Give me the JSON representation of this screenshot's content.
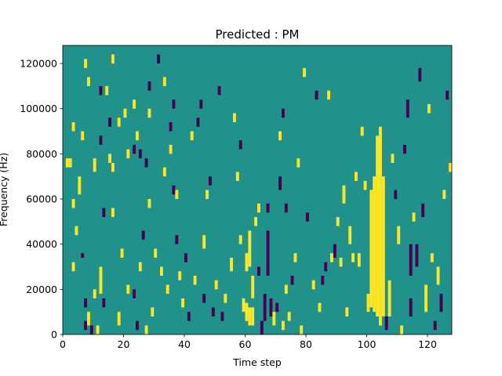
{
  "chart_data": {
    "type": "heatmap",
    "title": "Predicted : PM",
    "xlabel": "Time step",
    "ylabel": "Frequency (Hz)",
    "xlim": [
      0,
      128
    ],
    "ylim": [
      0,
      128000
    ],
    "xticks": [
      "0",
      "20",
      "40",
      "60",
      "80",
      "100",
      "120"
    ],
    "yticks": [
      "0",
      "20000",
      "40000",
      "60000",
      "80000",
      "100000",
      "120000"
    ],
    "grid": false,
    "legend": "none",
    "n_time_steps": 128,
    "n_freq_bins": 64,
    "bin_width_hz": 2000,
    "colors": {
      "background": "#21918c",
      "high": "#fde725",
      "low": "#440154"
    },
    "background_value": "mid",
    "segments": [
      {
        "t": 1,
        "f0": 74000,
        "f1": 78000,
        "v": "high"
      },
      {
        "t": 2,
        "f0": 74000,
        "f1": 78000,
        "v": "high"
      },
      {
        "t": 3,
        "f0": 90000,
        "f1": 94000,
        "v": "high"
      },
      {
        "t": 3,
        "f0": 56000,
        "f1": 60000,
        "v": "high"
      },
      {
        "t": 3,
        "f0": 28000,
        "f1": 32000,
        "v": "high"
      },
      {
        "t": 4,
        "f0": 44000,
        "f1": 48000,
        "v": "high"
      },
      {
        "t": 5,
        "f0": 62000,
        "f1": 70000,
        "v": "high"
      },
      {
        "t": 6,
        "f0": 86000,
        "f1": 90000,
        "v": "high"
      },
      {
        "t": 6,
        "f0": 34000,
        "f1": 36000,
        "v": "low"
      },
      {
        "t": 7,
        "f0": 118000,
        "f1": 122000,
        "v": "high"
      },
      {
        "t": 7,
        "f0": 2000,
        "f1": 6000,
        "v": "low"
      },
      {
        "t": 7,
        "f0": 12000,
        "f1": 16000,
        "v": "low"
      },
      {
        "t": 8,
        "f0": 110000,
        "f1": 114000,
        "v": "high"
      },
      {
        "t": 8,
        "f0": 4000,
        "f1": 10000,
        "v": "high"
      },
      {
        "t": 9,
        "f0": 0,
        "f1": 4000,
        "v": "low"
      },
      {
        "t": 10,
        "f0": 72000,
        "f1": 78000,
        "v": "high"
      },
      {
        "t": 10,
        "f0": 16000,
        "f1": 20000,
        "v": "high"
      },
      {
        "t": 11,
        "f0": 0,
        "f1": 4000,
        "v": "high"
      },
      {
        "t": 12,
        "f0": 106000,
        "f1": 110000,
        "v": "low"
      },
      {
        "t": 12,
        "f0": 84000,
        "f1": 88000,
        "v": "low"
      },
      {
        "t": 12,
        "f0": 18000,
        "f1": 30000,
        "v": "high"
      },
      {
        "t": 13,
        "f0": 52000,
        "f1": 56000,
        "v": "low"
      },
      {
        "t": 13,
        "f0": 12000,
        "f1": 16000,
        "v": "low"
      },
      {
        "t": 14,
        "f0": 106000,
        "f1": 110000,
        "v": "high"
      },
      {
        "t": 15,
        "f0": 92000,
        "f1": 96000,
        "v": "low"
      },
      {
        "t": 15,
        "f0": 76000,
        "f1": 80000,
        "v": "high"
      },
      {
        "t": 16,
        "f0": 120000,
        "f1": 124000,
        "v": "high"
      },
      {
        "t": 16,
        "f0": 72000,
        "f1": 76000,
        "v": "high"
      },
      {
        "t": 16,
        "f0": 52000,
        "f1": 56000,
        "v": "high"
      },
      {
        "t": 18,
        "f0": 92000,
        "f1": 96000,
        "v": "high"
      },
      {
        "t": 18,
        "f0": 4000,
        "f1": 10000,
        "v": "high"
      },
      {
        "t": 19,
        "f0": 34000,
        "f1": 38000,
        "v": "high"
      },
      {
        "t": 20,
        "f0": 96000,
        "f1": 100000,
        "v": "high"
      },
      {
        "t": 21,
        "f0": 78000,
        "f1": 82000,
        "v": "high"
      },
      {
        "t": 21,
        "f0": 18000,
        "f1": 22000,
        "v": "high"
      },
      {
        "t": 23,
        "f0": 100000,
        "f1": 104000,
        "v": "high"
      },
      {
        "t": 23,
        "f0": 80000,
        "f1": 84000,
        "v": "low"
      },
      {
        "t": 23,
        "f0": 16000,
        "f1": 20000,
        "v": "low"
      },
      {
        "t": 24,
        "f0": 86000,
        "f1": 90000,
        "v": "high"
      },
      {
        "t": 24,
        "f0": 2000,
        "f1": 6000,
        "v": "low"
      },
      {
        "t": 25,
        "f0": 78000,
        "f1": 82000,
        "v": "low"
      },
      {
        "t": 25,
        "f0": 28000,
        "f1": 32000,
        "v": "high"
      },
      {
        "t": 26,
        "f0": 42000,
        "f1": 46000,
        "v": "low"
      },
      {
        "t": 27,
        "f0": 74000,
        "f1": 78000,
        "v": "low"
      },
      {
        "t": 27,
        "f0": 0,
        "f1": 4000,
        "v": "high"
      },
      {
        "t": 28,
        "f0": 108000,
        "f1": 112000,
        "v": "low"
      },
      {
        "t": 28,
        "f0": 96000,
        "f1": 100000,
        "v": "high"
      },
      {
        "t": 28,
        "f0": 56000,
        "f1": 60000,
        "v": "high"
      },
      {
        "t": 29,
        "f0": 8000,
        "f1": 12000,
        "v": "high"
      },
      {
        "t": 30,
        "f0": 34000,
        "f1": 38000,
        "v": "high"
      },
      {
        "t": 31,
        "f0": 120000,
        "f1": 124000,
        "v": "low"
      },
      {
        "t": 32,
        "f0": 26000,
        "f1": 30000,
        "v": "high"
      },
      {
        "t": 33,
        "f0": 110000,
        "f1": 114000,
        "v": "high"
      },
      {
        "t": 33,
        "f0": 70000,
        "f1": 74000,
        "v": "high"
      },
      {
        "t": 34,
        "f0": 18000,
        "f1": 22000,
        "v": "high"
      },
      {
        "t": 35,
        "f0": 90000,
        "f1": 94000,
        "v": "low"
      },
      {
        "t": 35,
        "f0": 80000,
        "f1": 84000,
        "v": "high"
      },
      {
        "t": 36,
        "f0": 100000,
        "f1": 104000,
        "v": "low"
      },
      {
        "t": 36,
        "f0": 62000,
        "f1": 66000,
        "v": "low"
      },
      {
        "t": 37,
        "f0": 60000,
        "f1": 64000,
        "v": "high"
      },
      {
        "t": 37,
        "f0": 40000,
        "f1": 44000,
        "v": "low"
      },
      {
        "t": 38,
        "f0": 24000,
        "f1": 28000,
        "v": "high"
      },
      {
        "t": 39,
        "f0": 12000,
        "f1": 16000,
        "v": "high"
      },
      {
        "t": 40,
        "f0": 32000,
        "f1": 36000,
        "v": "low"
      },
      {
        "t": 41,
        "f0": 6000,
        "f1": 10000,
        "v": "low"
      },
      {
        "t": 42,
        "f0": 86000,
        "f1": 90000,
        "v": "high"
      },
      {
        "t": 43,
        "f0": 22000,
        "f1": 26000,
        "v": "high"
      },
      {
        "t": 44,
        "f0": 92000,
        "f1": 96000,
        "v": "low"
      },
      {
        "t": 45,
        "f0": 100000,
        "f1": 104000,
        "v": "low"
      },
      {
        "t": 46,
        "f0": 14000,
        "f1": 18000,
        "v": "low"
      },
      {
        "t": 46,
        "f0": 38000,
        "f1": 44000,
        "v": "high"
      },
      {
        "t": 47,
        "f0": 60000,
        "f1": 64000,
        "v": "high"
      },
      {
        "t": 48,
        "f0": 66000,
        "f1": 70000,
        "v": "low"
      },
      {
        "t": 49,
        "f0": 8000,
        "f1": 12000,
        "v": "low"
      },
      {
        "t": 50,
        "f0": 20000,
        "f1": 24000,
        "v": "high"
      },
      {
        "t": 51,
        "f0": 106000,
        "f1": 110000,
        "v": "low"
      },
      {
        "t": 52,
        "f0": 6000,
        "f1": 10000,
        "v": "low"
      },
      {
        "t": 53,
        "f0": 14000,
        "f1": 18000,
        "v": "high"
      },
      {
        "t": 55,
        "f0": 28000,
        "f1": 34000,
        "v": "high"
      },
      {
        "t": 56,
        "f0": 94000,
        "f1": 98000,
        "v": "high"
      },
      {
        "t": 57,
        "f0": 68000,
        "f1": 72000,
        "v": "high"
      },
      {
        "t": 58,
        "f0": 82000,
        "f1": 86000,
        "v": "low"
      },
      {
        "t": 58,
        "f0": 40000,
        "f1": 44000,
        "v": "high"
      },
      {
        "t": 59,
        "f0": 10000,
        "f1": 16000,
        "v": "high"
      },
      {
        "t": 60,
        "f0": 6000,
        "f1": 14000,
        "v": "high"
      },
      {
        "t": 60,
        "f0": 28000,
        "f1": 36000,
        "v": "high"
      },
      {
        "t": 61,
        "f0": 4000,
        "f1": 12000,
        "v": "high"
      },
      {
        "t": 61,
        "f0": 30000,
        "f1": 46000,
        "v": "high"
      },
      {
        "t": 62,
        "f0": 4000,
        "f1": 12000,
        "v": "high"
      },
      {
        "t": 62,
        "f0": 16000,
        "f1": 26000,
        "v": "high"
      },
      {
        "t": 63,
        "f0": 48000,
        "f1": 52000,
        "v": "high"
      },
      {
        "t": 64,
        "f0": 54000,
        "f1": 58000,
        "v": "high"
      },
      {
        "t": 64,
        "f0": 26000,
        "f1": 30000,
        "v": "low"
      },
      {
        "t": 65,
        "f0": 0,
        "f1": 6000,
        "v": "low"
      },
      {
        "t": 66,
        "f0": 6000,
        "f1": 18000,
        "v": "low"
      },
      {
        "t": 67,
        "f0": 54000,
        "f1": 58000,
        "v": "low"
      },
      {
        "t": 67,
        "f0": 26000,
        "f1": 46000,
        "v": "low"
      },
      {
        "t": 68,
        "f0": 8000,
        "f1": 16000,
        "v": "low"
      },
      {
        "t": 69,
        "f0": 4000,
        "f1": 10000,
        "v": "high"
      },
      {
        "t": 70,
        "f0": 10000,
        "f1": 14000,
        "v": "low"
      },
      {
        "t": 71,
        "f0": 86000,
        "f1": 90000,
        "v": "high"
      },
      {
        "t": 71,
        "f0": 64000,
        "f1": 70000,
        "v": "low"
      },
      {
        "t": 72,
        "f0": 96000,
        "f1": 100000,
        "v": "low"
      },
      {
        "t": 72,
        "f0": 2000,
        "f1": 6000,
        "v": "high"
      },
      {
        "t": 73,
        "f0": 54000,
        "f1": 58000,
        "v": "low"
      },
      {
        "t": 73,
        "f0": 18000,
        "f1": 22000,
        "v": "high"
      },
      {
        "t": 74,
        "f0": 6000,
        "f1": 10000,
        "v": "high"
      },
      {
        "t": 75,
        "f0": 22000,
        "f1": 26000,
        "v": "low"
      },
      {
        "t": 76,
        "f0": 32000,
        "f1": 36000,
        "v": "high"
      },
      {
        "t": 77,
        "f0": 74000,
        "f1": 78000,
        "v": "high"
      },
      {
        "t": 78,
        "f0": 0,
        "f1": 4000,
        "v": "high"
      },
      {
        "t": 79,
        "f0": 114000,
        "f1": 118000,
        "v": "high"
      },
      {
        "t": 80,
        "f0": 50000,
        "f1": 54000,
        "v": "low"
      },
      {
        "t": 82,
        "f0": 20000,
        "f1": 24000,
        "v": "high"
      },
      {
        "t": 83,
        "f0": 104000,
        "f1": 108000,
        "v": "low"
      },
      {
        "t": 84,
        "f0": 10000,
        "f1": 14000,
        "v": "high"
      },
      {
        "t": 85,
        "f0": 22000,
        "f1": 26000,
        "v": "low"
      },
      {
        "t": 86,
        "f0": 28000,
        "f1": 32000,
        "v": "low"
      },
      {
        "t": 87,
        "f0": 104000,
        "f1": 108000,
        "v": "high"
      },
      {
        "t": 88,
        "f0": 32000,
        "f1": 36000,
        "v": "high"
      },
      {
        "t": 89,
        "f0": 34000,
        "f1": 40000,
        "v": "low"
      },
      {
        "t": 90,
        "f0": 48000,
        "f1": 52000,
        "v": "high"
      },
      {
        "t": 91,
        "f0": 30000,
        "f1": 34000,
        "v": "high"
      },
      {
        "t": 92,
        "f0": 58000,
        "f1": 66000,
        "v": "high"
      },
      {
        "t": 93,
        "f0": 8000,
        "f1": 12000,
        "v": "high"
      },
      {
        "t": 94,
        "f0": 40000,
        "f1": 48000,
        "v": "high"
      },
      {
        "t": 95,
        "f0": 32000,
        "f1": 36000,
        "v": "high"
      },
      {
        "t": 96,
        "f0": 68000,
        "f1": 72000,
        "v": "high"
      },
      {
        "t": 97,
        "f0": 30000,
        "f1": 36000,
        "v": "high"
      },
      {
        "t": 98,
        "f0": 88000,
        "f1": 92000,
        "v": "high"
      },
      {
        "t": 99,
        "f0": 64000,
        "f1": 68000,
        "v": "high"
      },
      {
        "t": 100,
        "f0": 10000,
        "f1": 18000,
        "v": "high"
      },
      {
        "t": 101,
        "f0": 12000,
        "f1": 64000,
        "v": "high"
      },
      {
        "t": 102,
        "f0": 10000,
        "f1": 70000,
        "v": "high"
      },
      {
        "t": 103,
        "f0": 8000,
        "f1": 88000,
        "v": "high"
      },
      {
        "t": 104,
        "f0": 4000,
        "f1": 92000,
        "v": "high"
      },
      {
        "t": 105,
        "f0": 8000,
        "f1": 70000,
        "v": "high"
      },
      {
        "t": 106,
        "f0": 2000,
        "f1": 8000,
        "v": "low"
      },
      {
        "t": 107,
        "f0": 8000,
        "f1": 24000,
        "v": "high"
      },
      {
        "t": 108,
        "f0": 76000,
        "f1": 80000,
        "v": "high"
      },
      {
        "t": 109,
        "f0": 60000,
        "f1": 64000,
        "v": "low"
      },
      {
        "t": 110,
        "f0": 40000,
        "f1": 48000,
        "v": "high"
      },
      {
        "t": 111,
        "f0": 0,
        "f1": 4000,
        "v": "high"
      },
      {
        "t": 112,
        "f0": 80000,
        "f1": 84000,
        "v": "low"
      },
      {
        "t": 113,
        "f0": 96000,
        "f1": 104000,
        "v": "low"
      },
      {
        "t": 114,
        "f0": 8000,
        "f1": 16000,
        "v": "low"
      },
      {
        "t": 114,
        "f0": 26000,
        "f1": 40000,
        "v": "low"
      },
      {
        "t": 115,
        "f0": 50000,
        "f1": 54000,
        "v": "high"
      },
      {
        "t": 116,
        "f0": 30000,
        "f1": 40000,
        "v": "low"
      },
      {
        "t": 117,
        "f0": 112000,
        "f1": 118000,
        "v": "low"
      },
      {
        "t": 118,
        "f0": 52000,
        "f1": 58000,
        "v": "low"
      },
      {
        "t": 119,
        "f0": 10000,
        "f1": 22000,
        "v": "high"
      },
      {
        "t": 120,
        "f0": 98000,
        "f1": 102000,
        "v": "high"
      },
      {
        "t": 121,
        "f0": 32000,
        "f1": 36000,
        "v": "high"
      },
      {
        "t": 122,
        "f0": 2000,
        "f1": 6000,
        "v": "low"
      },
      {
        "t": 123,
        "f0": 22000,
        "f1": 30000,
        "v": "high"
      },
      {
        "t": 124,
        "f0": 10000,
        "f1": 18000,
        "v": "low"
      },
      {
        "t": 125,
        "f0": 60000,
        "f1": 64000,
        "v": "high"
      },
      {
        "t": 126,
        "f0": 104000,
        "f1": 108000,
        "v": "low"
      },
      {
        "t": 127,
        "f0": 72000,
        "f1": 76000,
        "v": "high"
      }
    ]
  }
}
